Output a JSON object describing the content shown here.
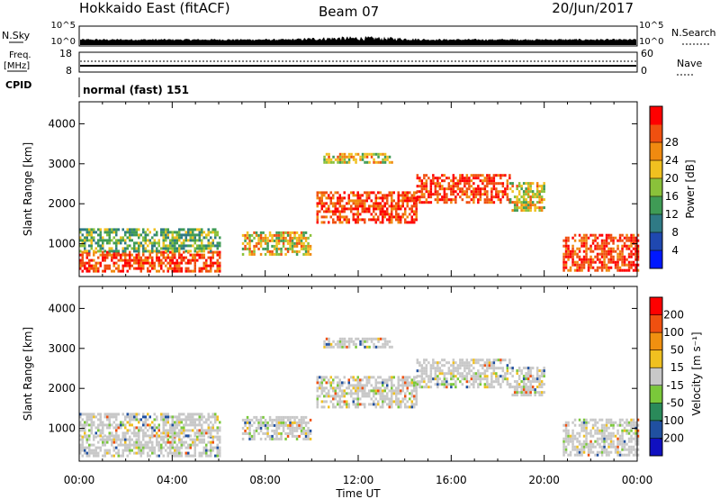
{
  "header": {
    "station": "Hokkaido East (fitACF)",
    "beam": "Beam 07",
    "date": "20/Jun/2017"
  },
  "param_panels": {
    "nsky_label": "N.Sky",
    "nsky_ticks": [
      "10^5",
      "10^0"
    ],
    "nsearch_label": "N.Search",
    "nsearch_ticks": [
      "10^5",
      "10^0"
    ],
    "freq_label_1": "Freq.",
    "freq_label_2": "[MHz]",
    "freq_ticks": [
      "18",
      "8"
    ],
    "nave_label": "Nave",
    "nave_ticks": [
      "60",
      "0"
    ],
    "cpid_label": "CPID",
    "cpid_text": "normal (fast) 151"
  },
  "chart_data": [
    {
      "type": "heatmap",
      "name": "power-panel",
      "ylabel": "Slant Range [km]",
      "xlabel": "",
      "x_ticks": [
        "00:00",
        "04:00",
        "08:00",
        "12:00",
        "16:00",
        "20:00",
        "00:00"
      ],
      "y_ticks": [
        1000,
        2000,
        3000,
        4000
      ],
      "ylim": [
        180,
        4550
      ],
      "xlim_hours": [
        0,
        24
      ],
      "colorbar": {
        "label": "Power [dB]",
        "ticks": [
          "4",
          "8",
          "12",
          "16",
          "20",
          "24",
          "28"
        ],
        "colors": [
          "#0018ff",
          "#1f48b0",
          "#2f7a85",
          "#3f9b55",
          "#8ac13a",
          "#f0c020",
          "#f08a10",
          "#f05010",
          "#ff0000"
        ]
      },
      "echo_regions": [
        {
          "hours": [
            0,
            6.0
          ],
          "range": [
            280,
            780
          ],
          "level": "high"
        },
        {
          "hours": [
            0,
            6.0
          ],
          "range": [
            780,
            1350
          ],
          "level": "low"
        },
        {
          "hours": [
            7.0,
            10.0
          ],
          "range": [
            700,
            1300
          ],
          "level": "mid"
        },
        {
          "hours": [
            10.2,
            14.5
          ],
          "range": [
            1500,
            2300
          ],
          "level": "high"
        },
        {
          "hours": [
            14.5,
            18.5
          ],
          "range": [
            2000,
            2700
          ],
          "level": "high"
        },
        {
          "hours": [
            18.5,
            20.0
          ],
          "range": [
            1800,
            2500
          ],
          "level": "mid"
        },
        {
          "hours": [
            20.8,
            24
          ],
          "range": [
            300,
            1200
          ],
          "level": "high"
        },
        {
          "hours": [
            10.5,
            13.5
          ],
          "range": [
            3000,
            3250
          ],
          "level": "mid"
        }
      ]
    },
    {
      "type": "heatmap",
      "name": "velocity-panel",
      "ylabel": "Slant Range [km]",
      "xlabel": "Time UT",
      "x_ticks": [
        "00:00",
        "04:00",
        "08:00",
        "12:00",
        "16:00",
        "20:00",
        "00:00"
      ],
      "y_ticks": [
        1000,
        2000,
        3000,
        4000
      ],
      "ylim": [
        180,
        4550
      ],
      "xlim_hours": [
        0,
        24
      ],
      "colorbar": {
        "label": "Velocity [m s⁻¹]",
        "ticks": [
          "200",
          "100",
          "50",
          "15",
          "-15",
          "-50",
          "-100",
          "-200"
        ],
        "colors": [
          "#1010c0",
          "#2050a0",
          "#2a8a5a",
          "#7ac83a",
          "#c8c8c8",
          "#f0c020",
          "#f09010",
          "#f05010",
          "#ff0000"
        ]
      }
    }
  ]
}
